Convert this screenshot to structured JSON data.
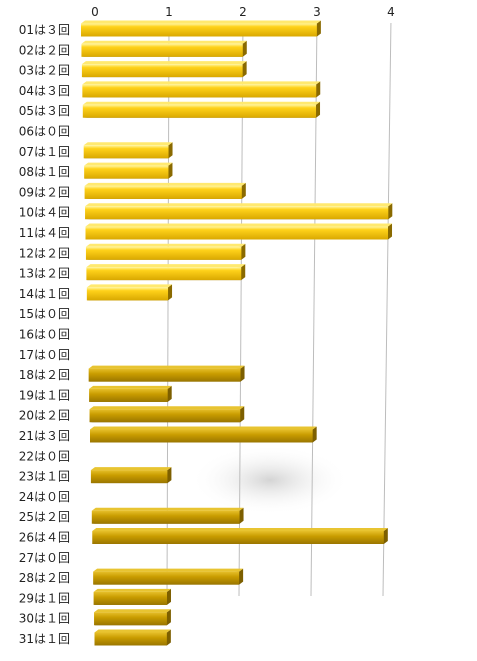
{
  "chart_data": {
    "type": "bar",
    "orientation": "horizontal",
    "categories": [
      "01は３回",
      "02は２回",
      "03は２回",
      "04は３回",
      "05は３回",
      "06は０回",
      "07は１回",
      "08は１回",
      "09は２回",
      "10は４回",
      "11は４回",
      "12は２回",
      "13は２回",
      "14は１回",
      "15は０回",
      "16は０回",
      "17は０回",
      "18は２回",
      "19は１回",
      "20は２回",
      "21は３回",
      "22は０回",
      "23は１回",
      "24は０回",
      "25は２回",
      "26は４回",
      "27は０回",
      "28は２回",
      "29は１回",
      "30は１回",
      "31は１回"
    ],
    "values": [
      3,
      2,
      2,
      3,
      3,
      0,
      1,
      1,
      2,
      4,
      4,
      2,
      2,
      1,
      0,
      0,
      0,
      2,
      1,
      2,
      3,
      0,
      1,
      0,
      2,
      4,
      0,
      2,
      1,
      1,
      1
    ],
    "x_ticks": [
      "0",
      "1",
      "2",
      "3",
      "4"
    ],
    "xlim": [
      0,
      4
    ],
    "grid": true,
    "colors": {
      "bar_light": "#ffd21a",
      "bar_dark": "#c79a00",
      "bar_top": "#ffe970",
      "bar_shadow": "#5a4500",
      "grid": "#bdbdbd"
    }
  }
}
